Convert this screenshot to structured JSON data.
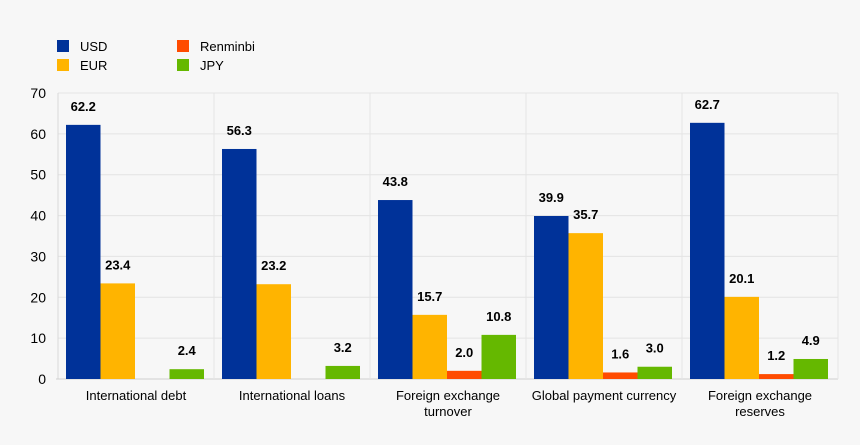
{
  "chart_data": {
    "type": "bar",
    "title": "",
    "xlabel": "",
    "ylabel": "",
    "ylim": [
      0,
      70
    ],
    "yticks": [
      0,
      10,
      20,
      30,
      40,
      50,
      60,
      70
    ],
    "grid": true,
    "legend_placement": "top-left",
    "categories": [
      [
        "International debt"
      ],
      [
        "International loans"
      ],
      [
        "Foreign exchange",
        "turnover"
      ],
      [
        "Global payment currency"
      ],
      [
        "Foreign exchange",
        "reserves"
      ]
    ],
    "series": [
      {
        "name": "USD",
        "color": "#003299",
        "values": [
          62.2,
          56.3,
          43.8,
          39.9,
          62.7
        ]
      },
      {
        "name": "EUR",
        "color": "#ffb400",
        "values": [
          23.4,
          23.2,
          15.7,
          35.7,
          20.1
        ]
      },
      {
        "name": "Renminbi",
        "color": "#ff4b00",
        "values": [
          null,
          null,
          2.0,
          1.6,
          1.2
        ]
      },
      {
        "name": "JPY",
        "color": "#65b800",
        "values": [
          2.4,
          3.2,
          10.8,
          3.0,
          4.9
        ]
      }
    ]
  }
}
